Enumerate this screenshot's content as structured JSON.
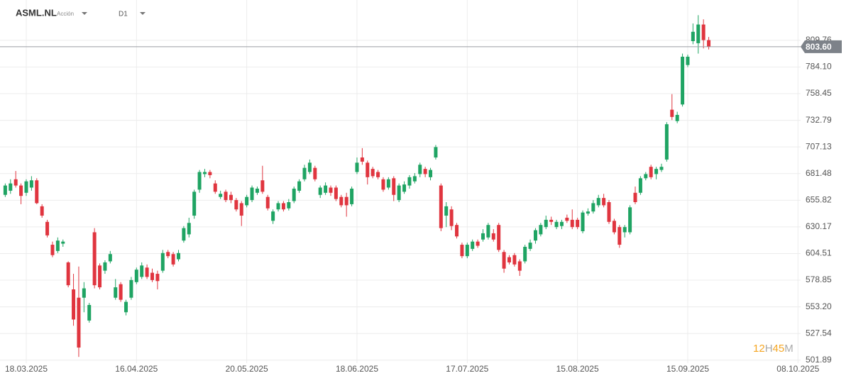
{
  "symbol": "ASML.NL",
  "symbol_type": "Acción",
  "timeframe": "D1",
  "countdown": [
    "12",
    "H",
    "45",
    "M"
  ],
  "chart_data": {
    "type": "candlestick",
    "up_color": "#1fa463",
    "down_color": "#e0353f",
    "grid": true,
    "xlim": [
      -1,
      151.5
    ],
    "xticks": [
      {
        "value": 4,
        "label": "18.03.2025"
      },
      {
        "value": 25,
        "label": "16.04.2025"
      },
      {
        "value": 46,
        "label": "20.05.2025"
      },
      {
        "value": 67,
        "label": "18.06.2025"
      },
      {
        "value": 88,
        "label": "17.07.2025"
      },
      {
        "value": 109,
        "label": "15.08.2025"
      },
      {
        "value": 130,
        "label": "15.09.2025"
      },
      {
        "value": 151,
        "label": "08.10.2025"
      }
    ],
    "ylim": [
      499,
      848.6
    ],
    "yticks": [
      501.89,
      527.54,
      {
        "value": 553.2,
        "label": "553.20"
      },
      578.85,
      604.51,
      630.17,
      655.82,
      681.48,
      707.13,
      732.79,
      758.45,
      {
        "value": 784.1,
        "label": "784.10"
      },
      809.76
    ],
    "price_line": {
      "value": 803.6,
      "label": "803.60"
    },
    "open": [
      661,
      665,
      676,
      670,
      663,
      668,
      675,
      650,
      635,
      613,
      607,
      614,
      596,
      570,
      562,
      562,
      540,
      625,
      593,
      588,
      597,
      562,
      575,
      548,
      562,
      577,
      582,
      591,
      586,
      585,
      588,
      606,
      604,
      599,
      617,
      623,
      641,
      666,
      681,
      683,
      672,
      659,
      664,
      661,
      656,
      653,
      651,
      656,
      663,
      675,
      659,
      636,
      647,
      653,
      648,
      655,
      665,
      676,
      683,
      687,
      661,
      663,
      668,
      668,
      659,
      659,
      652,
      683,
      697,
      692,
      686,
      683,
      676,
      668,
      677,
      656,
      664,
      670,
      674,
      681,
      686,
      678,
      697,
      670,
      641,
      647,
      632,
      613,
      602,
      609,
      616,
      618,
      620,
      624,
      632,
      606,
      601,
      603,
      597,
      597,
      609,
      617,
      623,
      630,
      637,
      630,
      631,
      639,
      637,
      637,
      626,
      643,
      645,
      651,
      658,
      654,
      636,
      630,
      625,
      625,
      663,
      663,
      677,
      688,
      681,
      685,
      695,
      743,
      732,
      748,
      786,
      809,
      807,
      825,
      810
    ],
    "high": [
      672,
      676,
      684,
      672,
      676,
      679,
      677,
      652,
      637,
      616,
      620,
      618,
      597,
      585,
      592,
      577,
      557,
      629,
      595,
      598,
      607,
      580,
      577,
      560,
      582,
      591,
      596,
      594,
      590,
      588,
      608,
      608,
      606,
      608,
      631,
      639,
      666,
      685,
      686,
      685,
      675,
      665,
      666,
      664,
      658,
      655,
      661,
      670,
      669,
      689,
      661,
      647,
      655,
      655,
      657,
      669,
      676,
      690,
      695,
      689,
      670,
      673,
      670,
      670,
      661,
      663,
      669,
      697,
      706,
      694,
      688,
      685,
      678,
      678,
      679,
      672,
      674,
      680,
      682,
      692,
      688,
      687,
      709,
      672,
      654,
      650,
      634,
      615,
      615,
      618,
      618,
      628,
      634,
      628,
      634,
      608,
      603,
      605,
      599,
      613,
      618,
      629,
      634,
      641,
      640,
      637,
      637,
      642,
      647,
      639,
      646,
      648,
      656,
      661,
      662,
      656,
      638,
      632,
      632,
      651,
      669,
      679,
      683,
      690,
      688,
      691,
      731,
      758,
      741,
      797,
      796,
      826,
      834,
      830,
      813
    ],
    "low": [
      659,
      662,
      668,
      652,
      660,
      665,
      652,
      639,
      620,
      601,
      605,
      611,
      572,
      535,
      505,
      548,
      538,
      571,
      570,
      585,
      595,
      560,
      558,
      545,
      560,
      575,
      580,
      580,
      577,
      570,
      586,
      600,
      592,
      597,
      615,
      620,
      638,
      663,
      678,
      677,
      662,
      657,
      654,
      653,
      645,
      631,
      649,
      654,
      661,
      662,
      646,
      633,
      645,
      645,
      646,
      653,
      663,
      674,
      681,
      674,
      658,
      661,
      660,
      655,
      649,
      640,
      650,
      681,
      690,
      671,
      677,
      676,
      664,
      666,
      655,
      654,
      662,
      667,
      672,
      678,
      678,
      675,
      695,
      626,
      630,
      627,
      619,
      600,
      600,
      607,
      610,
      616,
      618,
      616,
      606,
      586,
      594,
      592,
      583,
      595,
      607,
      614,
      621,
      628,
      632,
      628,
      628,
      634,
      628,
      628,
      624,
      641,
      643,
      649,
      649,
      633,
      623,
      610,
      620,
      623,
      652,
      661,
      675,
      676,
      676,
      683,
      693,
      733,
      730,
      746,
      784,
      806,
      797,
      802,
      801
    ],
    "close": [
      670,
      672,
      670,
      660,
      674,
      675,
      653,
      641,
      622,
      603,
      617,
      616,
      574,
      541,
      514,
      571,
      555,
      574,
      572,
      596,
      604,
      572,
      560,
      558,
      579,
      589,
      593,
      582,
      579,
      578,
      605,
      602,
      594,
      605,
      629,
      634,
      664,
      683,
      683,
      680,
      664,
      662,
      656,
      656,
      647,
      641,
      659,
      668,
      667,
      664,
      648,
      645,
      653,
      647,
      654,
      667,
      674,
      687,
      692,
      676,
      668,
      670,
      663,
      657,
      651,
      651,
      667,
      692,
      693,
      678,
      679,
      678,
      666,
      676,
      661,
      670,
      671,
      678,
      679,
      690,
      681,
      685,
      707,
      629,
      650,
      631,
      621,
      602,
      613,
      616,
      612,
      624,
      632,
      618,
      608,
      590,
      596,
      594,
      588,
      611,
      615,
      627,
      632,
      637,
      635,
      635,
      635,
      636,
      630,
      630,
      644,
      645,
      653,
      658,
      651,
      635,
      625,
      613,
      630,
      649,
      654,
      677,
      681,
      678,
      686,
      688,
      729,
      736,
      738,
      794,
      794,
      818,
      825,
      810,
      803.6
    ]
  }
}
